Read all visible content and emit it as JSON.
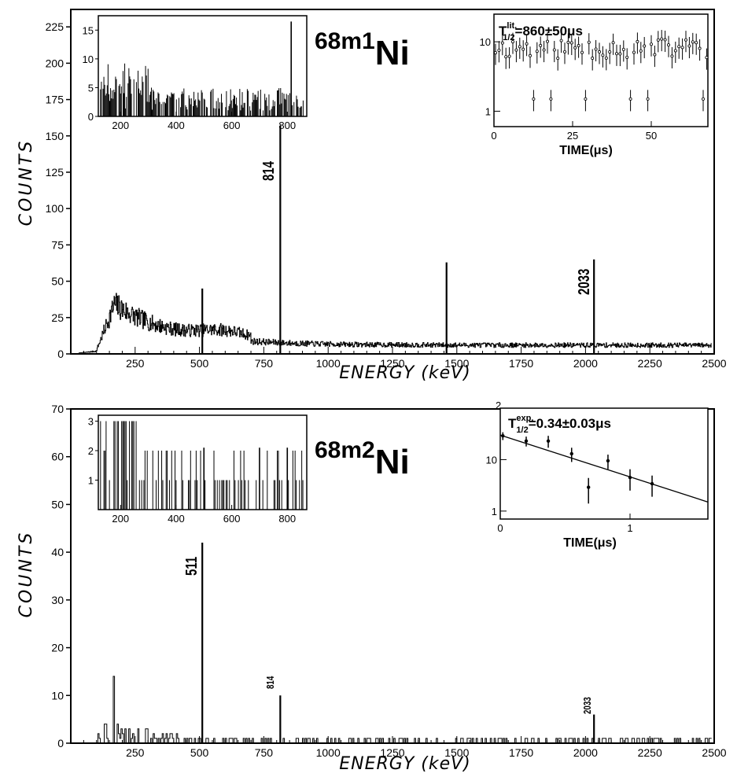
{
  "chart_data": [
    {
      "id": "top",
      "type": "histogram",
      "isotope": {
        "mass": "68m1",
        "element": "Ni"
      },
      "xlabel": "ENERGY (keV)",
      "ylabel": "COUNTS",
      "xlim": [
        0,
        2500
      ],
      "ylim": [
        0,
        237
      ],
      "xticks": [
        250,
        500,
        750,
        1000,
        1250,
        1500,
        1750,
        2000,
        2250,
        2500
      ],
      "yticks": [
        0,
        25,
        50,
        75,
        100,
        125,
        150,
        175,
        200,
        225
      ],
      "peaks": [
        {
          "x": 511,
          "y": 45
        },
        {
          "x": 814,
          "y": 157,
          "label": "814"
        },
        {
          "x": 1460,
          "y": 63
        },
        {
          "x": 2033,
          "y": 65,
          "label": "2033"
        }
      ],
      "inset_spectrum": {
        "xlim": [
          120,
          870
        ],
        "ylim": [
          0,
          17.5
        ],
        "xticks": [
          200,
          400,
          600,
          800
        ],
        "yticks": [
          0,
          5,
          10,
          15
        ],
        "peaks": [
          {
            "x": 814,
            "y": 16.5
          }
        ]
      },
      "inset_decay": {
        "title_main": "T",
        "title_sup": "lit.",
        "title_sub": "1/2",
        "title_value": "=860±50μs",
        "xlabel": "TIME(μs)",
        "xlim": [
          0,
          68
        ],
        "ylog": true,
        "ylim": [
          0.6,
          25
        ],
        "xticks": [
          0,
          25,
          50
        ],
        "yticks": [
          1,
          10
        ]
      }
    },
    {
      "id": "bottom",
      "type": "histogram",
      "isotope": {
        "mass": "68m2",
        "element": "Ni"
      },
      "xlabel": "ENERGY (keV)",
      "ylabel": "COUNTS",
      "xlim": [
        0,
        2500
      ],
      "ylim": [
        0,
        70
      ],
      "xticks": [
        250,
        500,
        750,
        1000,
        1250,
        1500,
        1750,
        2000,
        2250,
        2500
      ],
      "yticks": [
        0,
        10,
        20,
        30,
        40,
        50,
        60,
        70
      ],
      "peaks": [
        {
          "x": 511,
          "y": 42,
          "label": "511"
        },
        {
          "x": 814,
          "y": 10,
          "label": "814"
        },
        {
          "x": 2033,
          "y": 6,
          "label": "2033"
        }
      ],
      "inset_spectrum": {
        "xlim": [
          120,
          870
        ],
        "ylim": [
          0,
          3.2
        ],
        "xticks": [
          200,
          400,
          600,
          800
        ],
        "yticks": [
          1,
          2,
          3
        ]
      },
      "inset_decay": {
        "title_main": "T",
        "title_sup": "exp.",
        "title_sub": "1/2",
        "title_value": "=0.34±0.03μs",
        "xlabel": "TIME(μs)",
        "xlim": [
          0,
          1.6
        ],
        "ylog": true,
        "ylim": [
          0.7,
          100
        ],
        "xticks": [
          0,
          1
        ],
        "yticks": [
          1,
          10
        ],
        "y_top_exponent": "2",
        "points": [
          {
            "x": 0.02,
            "y": 29,
            "err": 5
          },
          {
            "x": 0.2,
            "y": 23,
            "err": 5
          },
          {
            "x": 0.37,
            "y": 23,
            "err": 6
          },
          {
            "x": 0.55,
            "y": 13,
            "err": 4
          },
          {
            "x": 0.68,
            "y": 2.9,
            "err": 1.5
          },
          {
            "x": 0.83,
            "y": 9.5,
            "err": 3
          },
          {
            "x": 1.0,
            "y": 4.5,
            "err": 2
          },
          {
            "x": 1.17,
            "y": 3.4,
            "err": 1.5
          }
        ],
        "fit": {
          "x": [
            0,
            1.6
          ],
          "y": [
            30,
            1.5
          ]
        }
      }
    }
  ]
}
